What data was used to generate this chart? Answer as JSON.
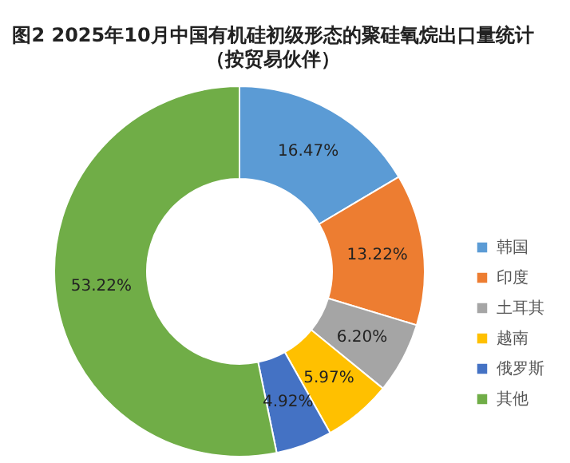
{
  "chart_data": {
    "type": "donut",
    "title": "图2 2025年10月中国有机硅初级形态的聚硅氧烷出口量统计",
    "subtitle": "（按贸易伙伴）",
    "categories": [
      "韩国",
      "印度",
      "土耳其",
      "越南",
      "俄罗斯",
      "其他"
    ],
    "values": [
      16.47,
      13.22,
      6.2,
      5.97,
      4.92,
      53.22
    ],
    "colors": [
      "#5b9bd5",
      "#ed7d31",
      "#a5a5a5",
      "#ffc000",
      "#4472c4",
      "#70ad47"
    ],
    "value_labels": [
      "16.47%",
      "13.22%",
      "6.20%",
      "5.97%",
      "4.92%",
      "53.22%"
    ],
    "legend": "right"
  }
}
